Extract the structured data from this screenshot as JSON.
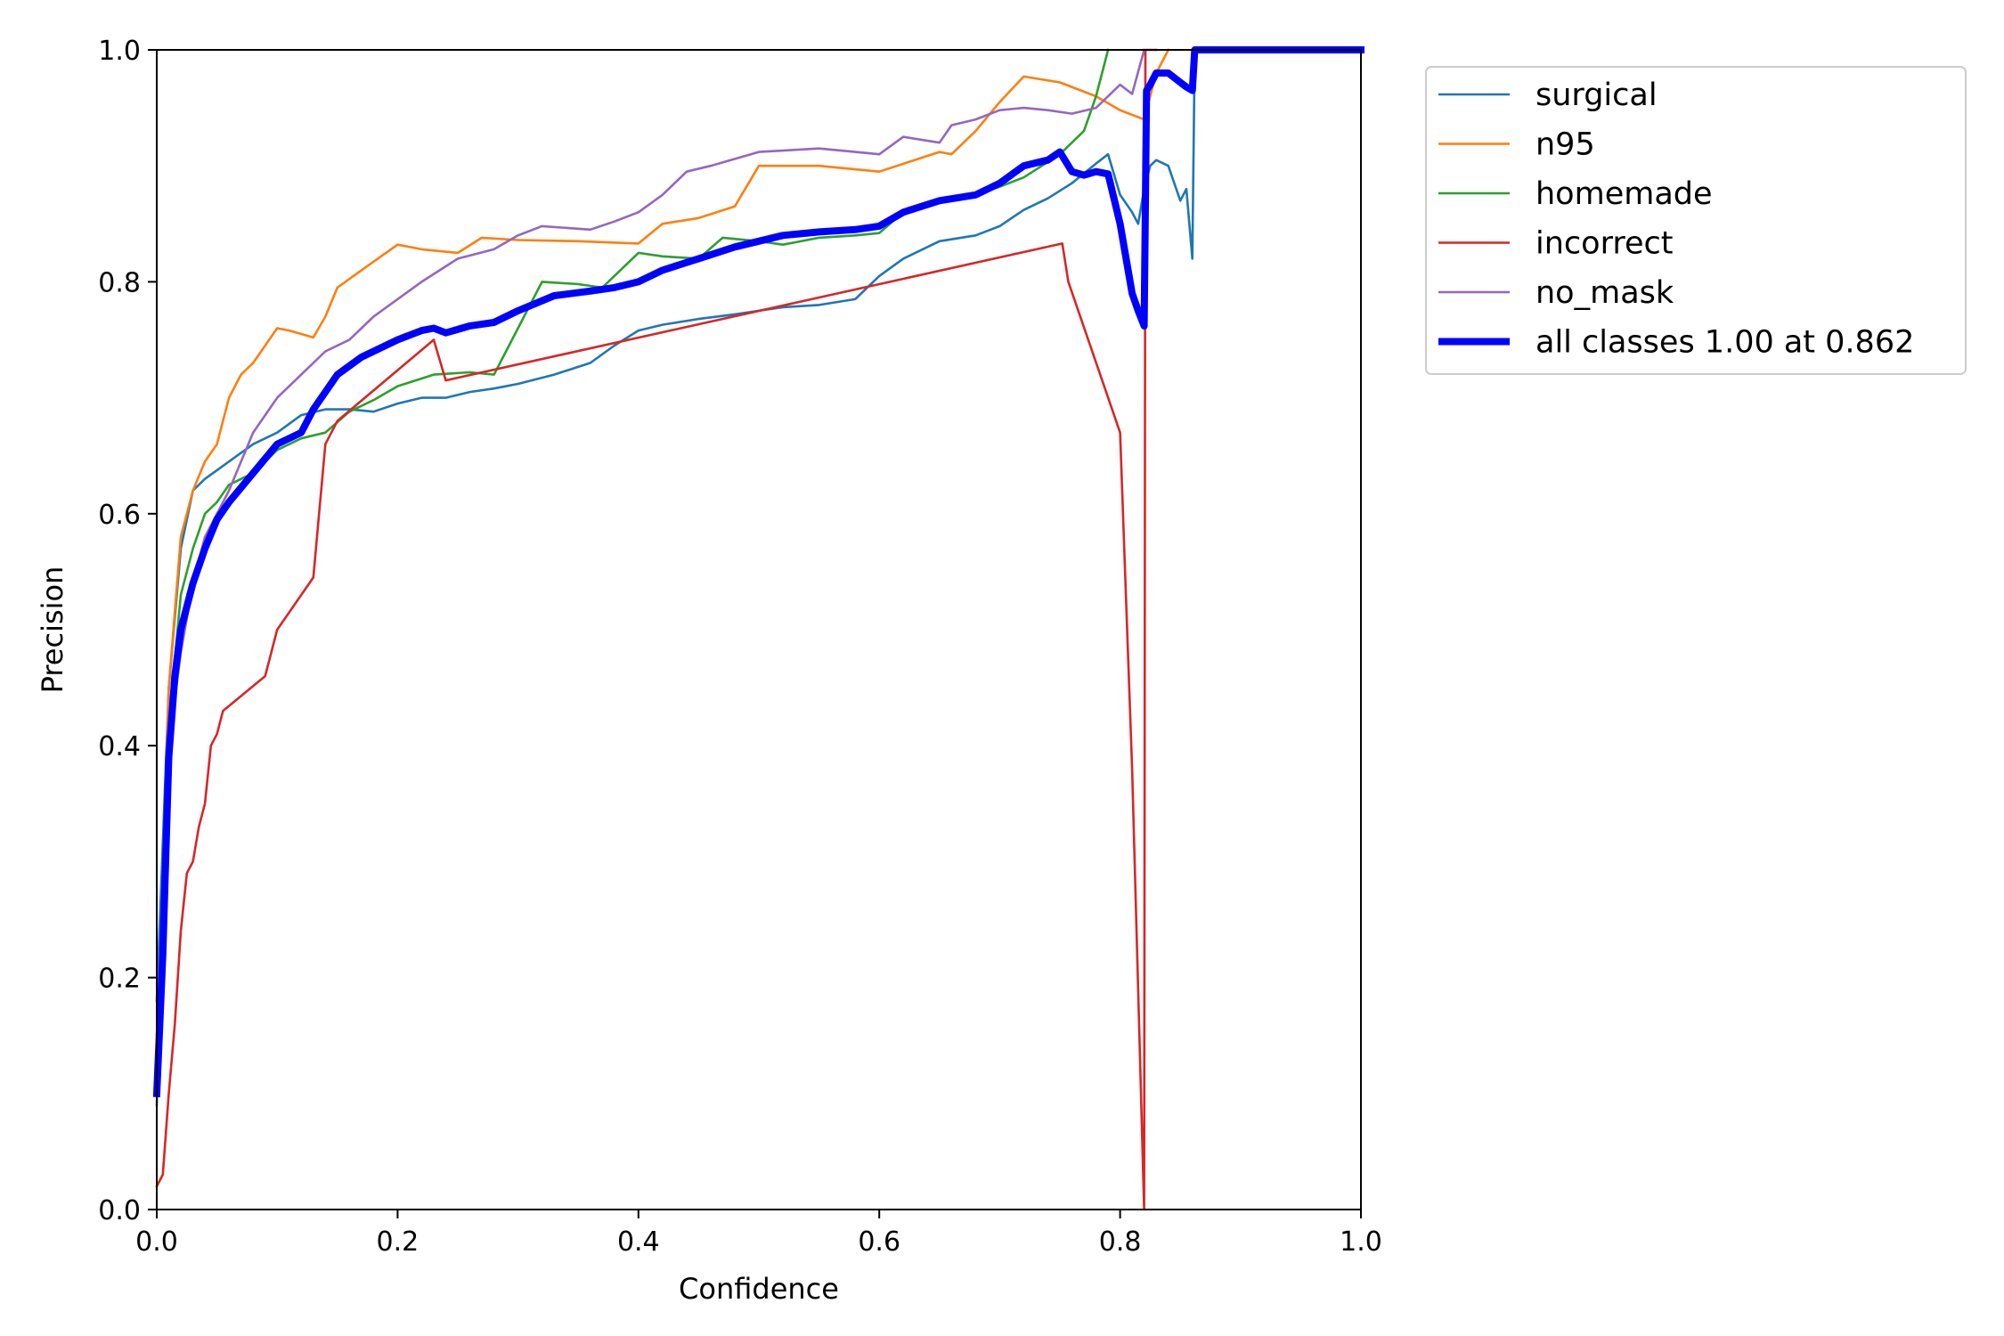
{
  "chart_data": {
    "type": "line",
    "title": "",
    "xlabel": "Confidence",
    "ylabel": "Precision",
    "xlim": [
      0,
      1
    ],
    "ylim": [
      0,
      1
    ],
    "xticks": [
      "0.0",
      "0.2",
      "0.4",
      "0.6",
      "0.8",
      "1.0"
    ],
    "yticks": [
      "0.0",
      "0.2",
      "0.4",
      "0.6",
      "0.8",
      "1.0"
    ],
    "grid": false,
    "legend_position": "outside-top-right",
    "series": [
      {
        "name": "surgical",
        "color": "#1f77b4",
        "x": [
          0,
          0.01,
          0.02,
          0.03,
          0.04,
          0.06,
          0.08,
          0.1,
          0.12,
          0.14,
          0.16,
          0.18,
          0.2,
          0.22,
          0.24,
          0.26,
          0.28,
          0.3,
          0.33,
          0.36,
          0.38,
          0.4,
          0.42,
          0.45,
          0.48,
          0.5,
          0.52,
          0.55,
          0.58,
          0.6,
          0.62,
          0.65,
          0.68,
          0.7,
          0.72,
          0.74,
          0.76,
          0.78,
          0.79,
          0.8,
          0.81,
          0.815,
          0.82,
          0.825,
          0.83,
          0.84,
          0.85,
          0.855,
          0.86,
          0.862,
          0.87,
          0.9,
          1.0
        ],
        "y": [
          0.18,
          0.45,
          0.57,
          0.62,
          0.63,
          0.645,
          0.66,
          0.67,
          0.685,
          0.69,
          0.69,
          0.688,
          0.695,
          0.7,
          0.7,
          0.705,
          0.708,
          0.712,
          0.72,
          0.73,
          0.745,
          0.758,
          0.763,
          0.768,
          0.772,
          0.775,
          0.778,
          0.78,
          0.785,
          0.805,
          0.82,
          0.835,
          0.84,
          0.848,
          0.862,
          0.872,
          0.885,
          0.902,
          0.91,
          0.875,
          0.86,
          0.85,
          0.88,
          0.9,
          0.905,
          0.9,
          0.87,
          0.88,
          0.82,
          1.0,
          1.0,
          1.0,
          1.0
        ]
      },
      {
        "name": "n95",
        "color": "#ff7f0e",
        "x": [
          0,
          0.01,
          0.02,
          0.03,
          0.04,
          0.05,
          0.06,
          0.07,
          0.08,
          0.09,
          0.1,
          0.11,
          0.12,
          0.13,
          0.14,
          0.15,
          0.17,
          0.2,
          0.22,
          0.25,
          0.27,
          0.3,
          0.35,
          0.4,
          0.42,
          0.45,
          0.48,
          0.5,
          0.55,
          0.6,
          0.65,
          0.66,
          0.68,
          0.7,
          0.72,
          0.75,
          0.78,
          0.8,
          0.82,
          0.825,
          0.83,
          0.84
        ],
        "y": [
          0.12,
          0.45,
          0.58,
          0.62,
          0.645,
          0.66,
          0.7,
          0.72,
          0.73,
          0.745,
          0.76,
          0.758,
          0.755,
          0.752,
          0.77,
          0.795,
          0.81,
          0.832,
          0.828,
          0.825,
          0.838,
          0.836,
          0.835,
          0.833,
          0.85,
          0.855,
          0.865,
          0.9,
          0.9,
          0.895,
          0.912,
          0.91,
          0.93,
          0.955,
          0.977,
          0.972,
          0.96,
          0.948,
          0.94,
          0.96,
          0.98,
          1.0
        ]
      },
      {
        "name": "homemade",
        "color": "#2ca02c",
        "x": [
          0,
          0.01,
          0.02,
          0.03,
          0.04,
          0.05,
          0.06,
          0.08,
          0.1,
          0.12,
          0.14,
          0.16,
          0.18,
          0.2,
          0.23,
          0.26,
          0.28,
          0.3,
          0.32,
          0.35,
          0.37,
          0.4,
          0.42,
          0.45,
          0.47,
          0.5,
          0.52,
          0.55,
          0.58,
          0.6,
          0.62,
          0.65,
          0.68,
          0.7,
          0.72,
          0.75,
          0.77,
          0.78,
          0.79
        ],
        "y": [
          0.09,
          0.42,
          0.53,
          0.57,
          0.6,
          0.61,
          0.625,
          0.635,
          0.655,
          0.665,
          0.67,
          0.688,
          0.698,
          0.71,
          0.72,
          0.722,
          0.72,
          0.76,
          0.8,
          0.798,
          0.795,
          0.825,
          0.822,
          0.82,
          0.838,
          0.835,
          0.832,
          0.838,
          0.84,
          0.842,
          0.86,
          0.87,
          0.875,
          0.882,
          0.89,
          0.91,
          0.93,
          0.96,
          1.0
        ]
      },
      {
        "name": "incorrect",
        "color": "#d62728",
        "x": [
          0,
          0.005,
          0.01,
          0.015,
          0.02,
          0.025,
          0.03,
          0.035,
          0.04,
          0.045,
          0.05,
          0.055,
          0.09,
          0.1,
          0.13,
          0.14,
          0.15,
          0.23,
          0.24,
          0.752,
          0.757,
          0.8,
          0.81,
          0.82,
          0.821,
          0.825,
          0.83
        ],
        "y": [
          0.02,
          0.03,
          0.1,
          0.16,
          0.24,
          0.29,
          0.3,
          0.33,
          0.35,
          0.4,
          0.41,
          0.43,
          0.46,
          0.5,
          0.545,
          0.66,
          0.68,
          0.75,
          0.715,
          0.833,
          0.8,
          0.67,
          0.38,
          0.0,
          1.0,
          1.0,
          1.0
        ]
      },
      {
        "name": "no_mask",
        "color": "#9467bd",
        "x": [
          0,
          0.01,
          0.02,
          0.03,
          0.04,
          0.05,
          0.06,
          0.08,
          0.1,
          0.12,
          0.14,
          0.16,
          0.18,
          0.2,
          0.22,
          0.25,
          0.28,
          0.3,
          0.32,
          0.36,
          0.38,
          0.4,
          0.42,
          0.44,
          0.46,
          0.5,
          0.55,
          0.58,
          0.6,
          0.62,
          0.65,
          0.66,
          0.68,
          0.7,
          0.72,
          0.74,
          0.76,
          0.78,
          0.8,
          0.81,
          0.82
        ],
        "y": [
          0.15,
          0.4,
          0.48,
          0.54,
          0.58,
          0.6,
          0.62,
          0.67,
          0.7,
          0.72,
          0.74,
          0.75,
          0.77,
          0.785,
          0.8,
          0.82,
          0.828,
          0.84,
          0.848,
          0.845,
          0.852,
          0.86,
          0.875,
          0.895,
          0.9,
          0.912,
          0.915,
          0.912,
          0.91,
          0.925,
          0.92,
          0.935,
          0.94,
          0.948,
          0.95,
          0.948,
          0.945,
          0.95,
          0.97,
          0.962,
          1.0
        ]
      },
      {
        "name": "all classes 1.00 at 0.862",
        "color": "#0000ff",
        "bold": true,
        "x": [
          0,
          0.005,
          0.01,
          0.015,
          0.02,
          0.03,
          0.04,
          0.05,
          0.06,
          0.08,
          0.1,
          0.12,
          0.13,
          0.14,
          0.15,
          0.17,
          0.2,
          0.22,
          0.23,
          0.24,
          0.26,
          0.28,
          0.3,
          0.33,
          0.36,
          0.38,
          0.4,
          0.42,
          0.45,
          0.48,
          0.5,
          0.52,
          0.55,
          0.58,
          0.6,
          0.62,
          0.65,
          0.68,
          0.7,
          0.72,
          0.74,
          0.75,
          0.76,
          0.77,
          0.78,
          0.79,
          0.8,
          0.81,
          0.815,
          0.82,
          0.822,
          0.825,
          0.83,
          0.84,
          0.85,
          0.855,
          0.86,
          0.862,
          0.87,
          0.9,
          1.0
        ],
        "y": [
          0.1,
          0.22,
          0.39,
          0.46,
          0.5,
          0.54,
          0.57,
          0.595,
          0.61,
          0.635,
          0.66,
          0.67,
          0.69,
          0.705,
          0.72,
          0.735,
          0.75,
          0.758,
          0.76,
          0.756,
          0.762,
          0.765,
          0.775,
          0.788,
          0.792,
          0.795,
          0.8,
          0.81,
          0.82,
          0.83,
          0.835,
          0.84,
          0.843,
          0.845,
          0.848,
          0.86,
          0.87,
          0.875,
          0.885,
          0.9,
          0.905,
          0.912,
          0.895,
          0.892,
          0.895,
          0.893,
          0.85,
          0.79,
          0.775,
          0.762,
          0.965,
          0.97,
          0.98,
          0.98,
          0.972,
          0.968,
          0.965,
          1.0,
          1.0,
          1.0,
          1.0
        ]
      }
    ]
  }
}
